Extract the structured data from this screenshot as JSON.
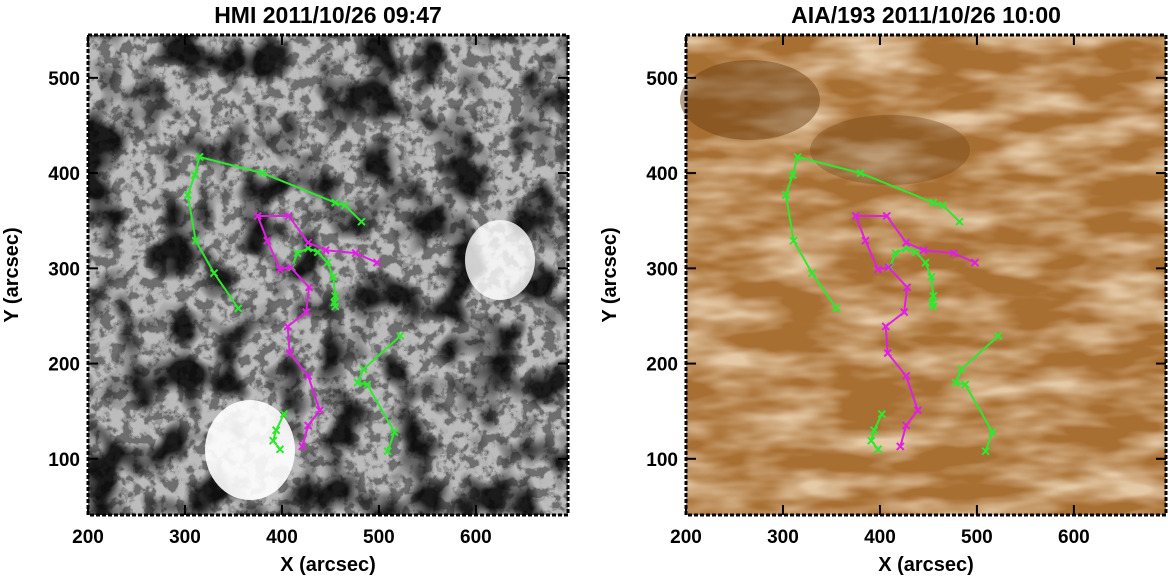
{
  "chart_data": [
    {
      "type": "line",
      "title": "HMI 2011/10/26 09:47",
      "xlabel": "X (arcsec)",
      "ylabel": "Y (arcsec)",
      "xlim": [
        200,
        695
      ],
      "ylim": [
        41,
        545
      ],
      "xticks": [
        200,
        300,
        400,
        500,
        600
      ],
      "yticks": [
        100,
        200,
        300,
        400,
        500
      ],
      "series": [
        {
          "color": "#2ee82e",
          "x": [
            355,
            330,
            311,
            303,
            310,
            315,
            380,
            455,
            465,
            482
          ],
          "values": [
            258,
            295,
            329,
            377,
            398,
            417,
            400,
            369,
            366,
            349
          ]
        },
        {
          "color": "#2ee82e",
          "x": [
            410,
            416,
            427,
            437,
            447,
            453,
            455,
            454,
            455
          ],
          "values": [
            301,
            316,
            321,
            317,
            306,
            291,
            271,
            264,
            260
          ]
        },
        {
          "color": "#2ee82e",
          "x": [
            522,
            484,
            478,
            488,
            516,
            509
          ],
          "values": [
            229,
            194,
            180,
            178,
            128,
            108
          ]
        },
        {
          "color": "#2ee82e",
          "x": [
            402,
            394,
            391,
            398
          ],
          "values": [
            147,
            130,
            119,
            110
          ]
        },
        {
          "color": "#e020e0",
          "x": [
            498,
            476,
            445,
            427,
            407,
            375,
            385,
            398,
            409,
            428,
            425,
            406,
            408,
            427,
            439,
            427,
            421
          ],
          "values": [
            306,
            316,
            319,
            327,
            355,
            355,
            329,
            299,
            301,
            280,
            254,
            239,
            211,
            187,
            151,
            135,
            113
          ]
        }
      ]
    },
    {
      "type": "line",
      "title": "AIA/193 2011/10/26 10:00",
      "xlabel": "X (arcsec)",
      "ylabel": "Y (arcsec)",
      "xlim": [
        200,
        695
      ],
      "ylim": [
        41,
        545
      ],
      "xticks": [
        200,
        300,
        400,
        500,
        600
      ],
      "yticks": [
        100,
        200,
        300,
        400,
        500
      ],
      "series": [
        {
          "color": "#2ee82e",
          "x": [
            355,
            330,
            311,
            303,
            310,
            315,
            380,
            455,
            465,
            482
          ],
          "values": [
            258,
            295,
            329,
            377,
            398,
            417,
            400,
            369,
            366,
            349
          ]
        },
        {
          "color": "#2ee82e",
          "x": [
            410,
            416,
            427,
            437,
            447,
            453,
            455,
            454,
            455
          ],
          "values": [
            301,
            316,
            321,
            317,
            306,
            291,
            271,
            264,
            260
          ]
        },
        {
          "color": "#2ee82e",
          "x": [
            522,
            484,
            478,
            488,
            516,
            509
          ],
          "values": [
            229,
            194,
            180,
            178,
            128,
            108
          ]
        },
        {
          "color": "#2ee82e",
          "x": [
            402,
            394,
            391,
            398
          ],
          "values": [
            147,
            130,
            119,
            110
          ]
        },
        {
          "color": "#e020e0",
          "x": [
            498,
            476,
            445,
            427,
            407,
            375,
            385,
            398,
            409,
            428,
            425,
            406,
            408,
            427,
            439,
            427,
            421
          ],
          "values": [
            306,
            316,
            319,
            327,
            355,
            355,
            329,
            299,
            301,
            280,
            254,
            239,
            211,
            187,
            151,
            135,
            113
          ]
        }
      ]
    }
  ]
}
